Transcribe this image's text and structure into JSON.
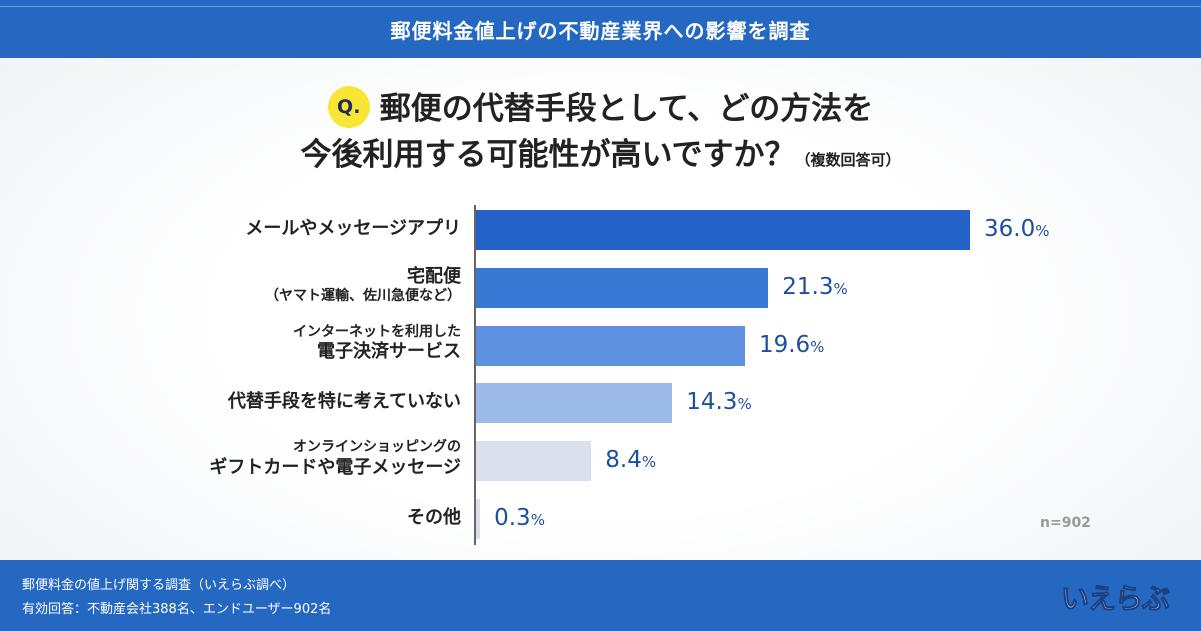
{
  "header": {
    "title": "郵便料金値上げの不動産業界への影響を調査"
  },
  "question": {
    "badge": "Q.",
    "line1": "郵便の代替手段として、どの方法を",
    "line2": "今後利用する可能性が高いですか？",
    "note": "（複数回答可）"
  },
  "chart_data": {
    "type": "bar",
    "orientation": "horizontal",
    "categories": [
      {
        "top": "",
        "main": "メールやメッセージアプリ",
        "sub": ""
      },
      {
        "top": "",
        "main": "宅配便",
        "sub": "（ヤマト運輸、佐川急便など）"
      },
      {
        "top": "インターネットを利用した",
        "main": "電子決済サービス",
        "sub": ""
      },
      {
        "top": "",
        "main": "代替手段を特に考えていない",
        "sub": ""
      },
      {
        "top": "オンラインショッピングの",
        "main": "ギフトカードや電子メッセージ",
        "sub": ""
      },
      {
        "top": "",
        "main": "その他",
        "sub": ""
      }
    ],
    "values": [
      36.0,
      21.3,
      19.6,
      14.3,
      8.4,
      0.3
    ],
    "value_labels": [
      "36.0",
      "21.3",
      "19.6",
      "14.3",
      "8.4",
      "0.3"
    ],
    "unit": "%",
    "colors": [
      "#2461c8",
      "#3a78d6",
      "#5f93e2",
      "#9dbbe9",
      "#d9e0ec",
      "#d9e0ec"
    ],
    "xlim": [
      0,
      36
    ],
    "n_label": "n=902"
  },
  "footer": {
    "line1": "郵便料金の値上げ関する調査（いえらぶ調べ）",
    "line2": "有効回答：不動産会社388名、エンドユーザー902名",
    "logo": "いえらぶ"
  }
}
